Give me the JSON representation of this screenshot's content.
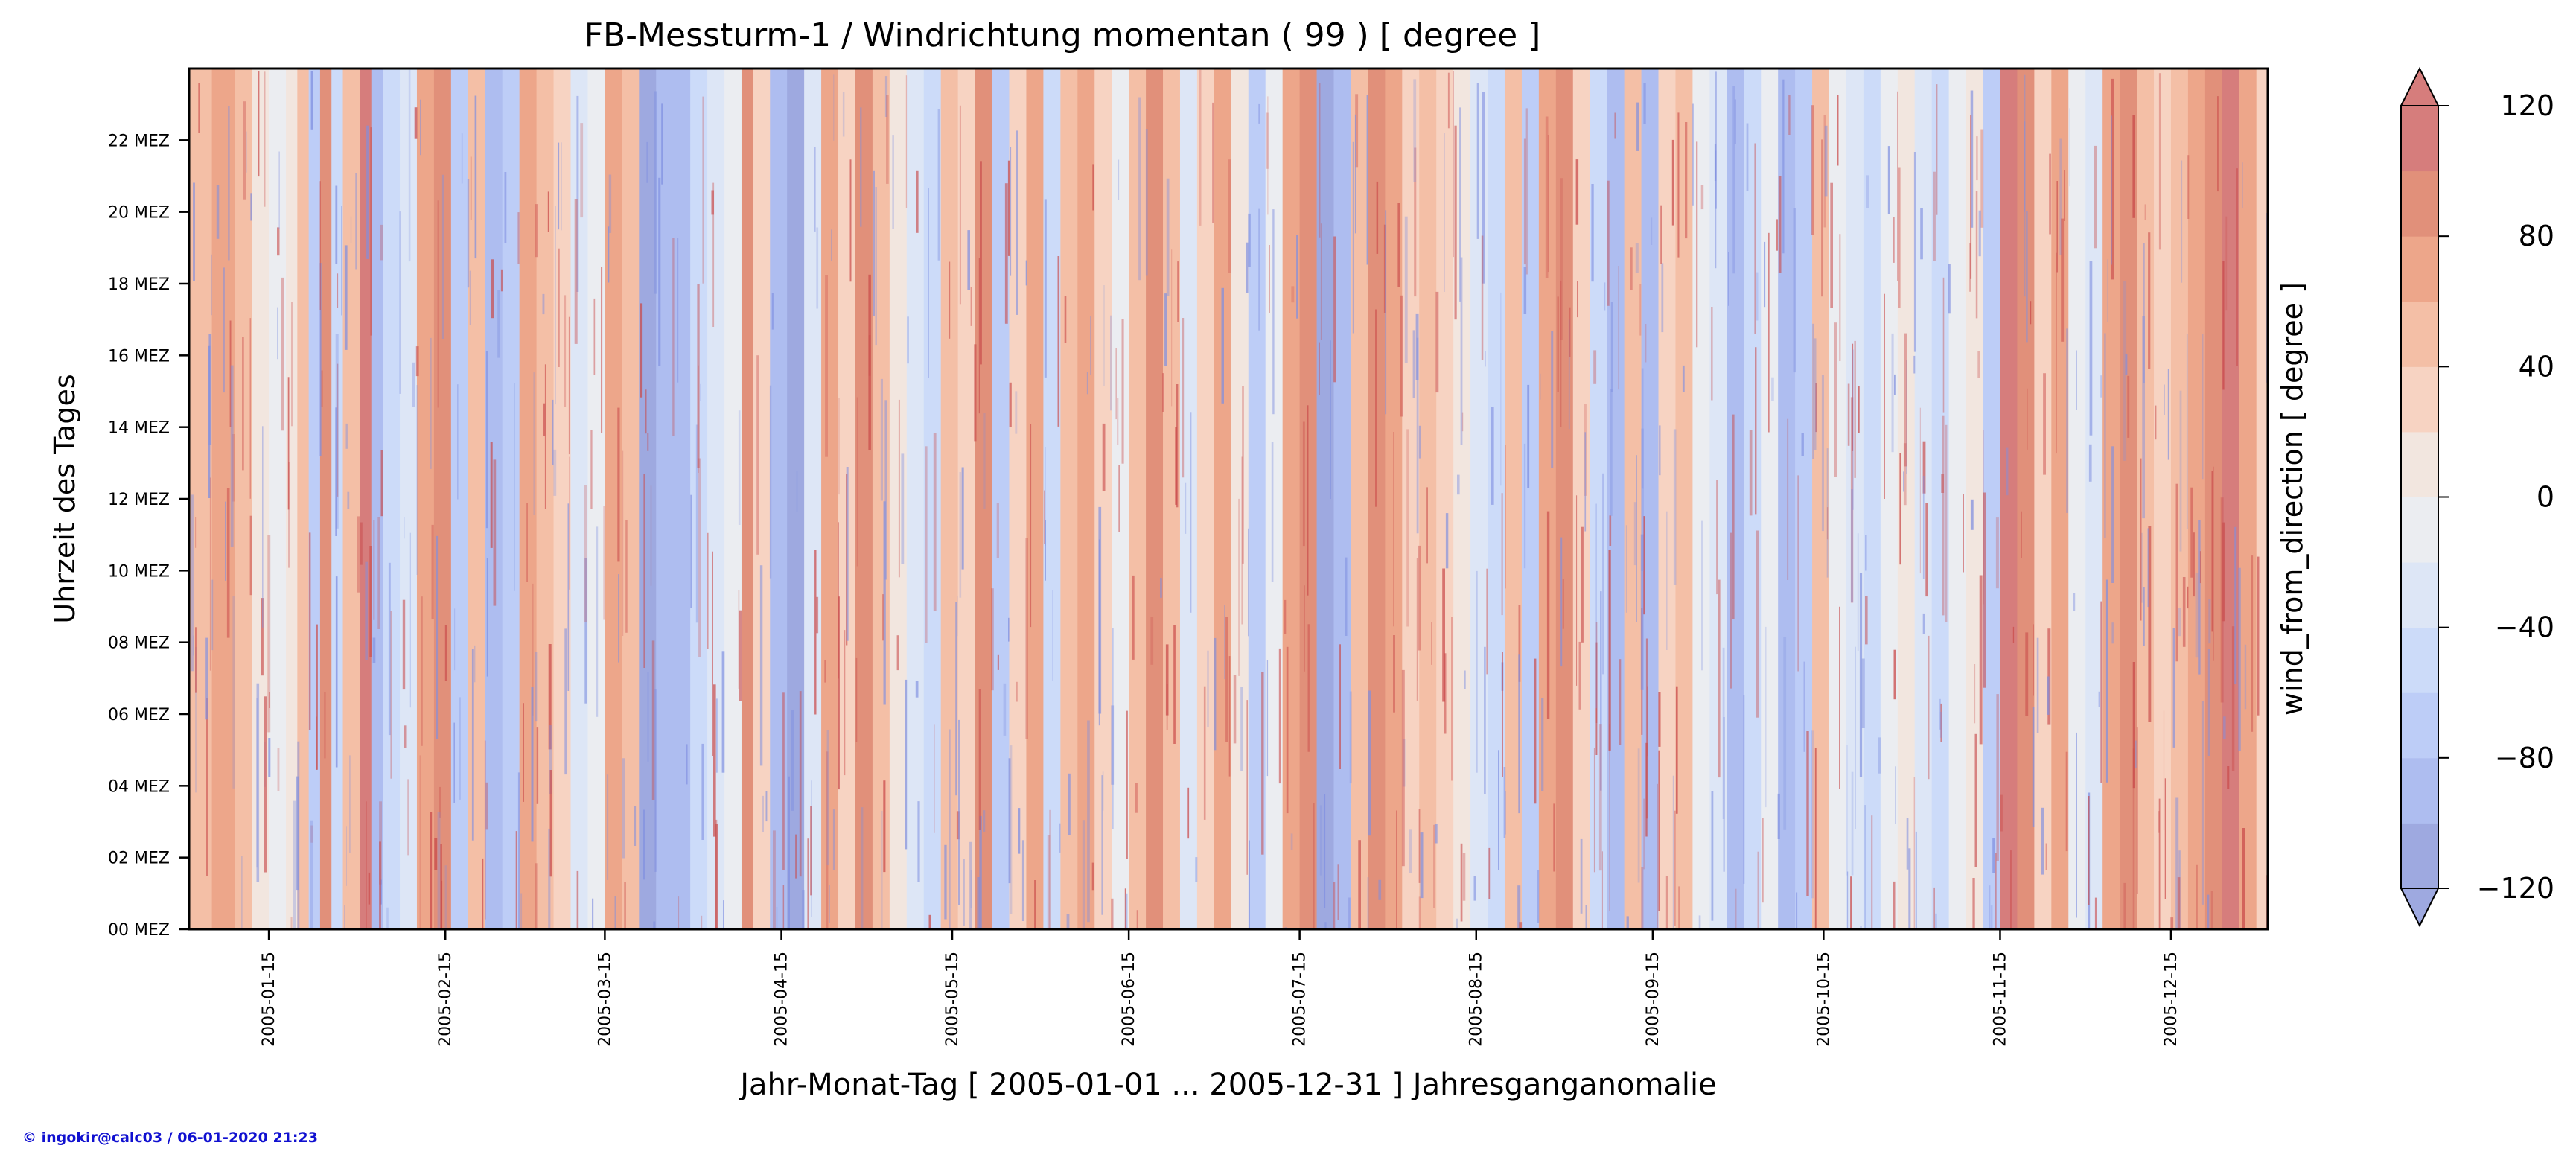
{
  "chart_data": {
    "type": "heatmap",
    "title": "FB-Messturm-1 / Windrichtung momentan ( 99 ) [ degree ]",
    "xlabel": "Jahr-Monat-Tag [ 2005-01-01 ... 2005-12-31 ] Jahresganganomalie",
    "ylabel": "Uhrzeit des Tages",
    "colorbar_label": "wind_from_direction [ degree ]",
    "x_range": [
      "2005-01-01",
      "2005-12-31"
    ],
    "y_range_hours": [
      0,
      24
    ],
    "x_ticks": [
      {
        "date": "2005-01-15",
        "day": 14
      },
      {
        "date": "2005-02-15",
        "day": 45
      },
      {
        "date": "2005-03-15",
        "day": 73
      },
      {
        "date": "2005-04-15",
        "day": 104
      },
      {
        "date": "2005-05-15",
        "day": 134
      },
      {
        "date": "2005-06-15",
        "day": 165
      },
      {
        "date": "2005-07-15",
        "day": 195
      },
      {
        "date": "2005-08-15",
        "day": 226
      },
      {
        "date": "2005-09-15",
        "day": 257
      },
      {
        "date": "2005-10-15",
        "day": 287
      },
      {
        "date": "2005-11-15",
        "day": 318
      },
      {
        "date": "2005-12-15",
        "day": 348
      }
    ],
    "y_ticks": [
      {
        "label": "00 MEZ",
        "hour": 0
      },
      {
        "label": "02 MEZ",
        "hour": 2
      },
      {
        "label": "04 MEZ",
        "hour": 4
      },
      {
        "label": "06 MEZ",
        "hour": 6
      },
      {
        "label": "08 MEZ",
        "hour": 8
      },
      {
        "label": "10 MEZ",
        "hour": 10
      },
      {
        "label": "12 MEZ",
        "hour": 12
      },
      {
        "label": "14 MEZ",
        "hour": 14
      },
      {
        "label": "16 MEZ",
        "hour": 16
      },
      {
        "label": "18 MEZ",
        "hour": 18
      },
      {
        "label": "20 MEZ",
        "hour": 20
      },
      {
        "label": "22 MEZ",
        "hour": 22
      }
    ],
    "colorbar": {
      "range": [
        -120,
        120
      ],
      "levels": [
        -120,
        -100,
        -80,
        -60,
        -40,
        -20,
        0,
        20,
        40,
        60,
        80,
        100,
        120
      ],
      "tick_values": [
        -120,
        -80,
        -40,
        0,
        40,
        80,
        120
      ],
      "tick_labels": [
        "−120",
        "−80",
        "−40",
        "0",
        "40",
        "80",
        "120"
      ],
      "colors": [
        "#9ea9e0",
        "#aebdf0",
        "#bdcdf7",
        "#ccdbf9",
        "#dde6f6",
        "#ebedf1",
        "#f2e6df",
        "#f7d3c2",
        "#f4bfa6",
        "#eda68a",
        "#e1907a",
        "#d67d7c"
      ],
      "extend": "both"
    },
    "daily_anomaly_estimate": [
      {
        "day": 0,
        "value": 40
      },
      {
        "day": 4,
        "value": 60
      },
      {
        "day": 8,
        "value": 40
      },
      {
        "day": 11,
        "value": 10
      },
      {
        "day": 14,
        "value": -20
      },
      {
        "day": 17,
        "value": 5
      },
      {
        "day": 19,
        "value": 40
      },
      {
        "day": 21,
        "value": -80
      },
      {
        "day": 23,
        "value": 80
      },
      {
        "day": 25,
        "value": -60
      },
      {
        "day": 27,
        "value": 40
      },
      {
        "day": 30,
        "value": 100
      },
      {
        "day": 32,
        "value": -90
      },
      {
        "day": 34,
        "value": -60
      },
      {
        "day": 37,
        "value": -30
      },
      {
        "day": 40,
        "value": 60
      },
      {
        "day": 43,
        "value": 80
      },
      {
        "day": 46,
        "value": -80
      },
      {
        "day": 49,
        "value": 50
      },
      {
        "day": 52,
        "value": -100
      },
      {
        "day": 55,
        "value": -70
      },
      {
        "day": 58,
        "value": 70
      },
      {
        "day": 61,
        "value": 40
      },
      {
        "day": 64,
        "value": 20
      },
      {
        "day": 67,
        "value": -40
      },
      {
        "day": 70,
        "value": -20
      },
      {
        "day": 73,
        "value": 60
      },
      {
        "day": 76,
        "value": 40
      },
      {
        "day": 79,
        "value": -110
      },
      {
        "day": 82,
        "value": -90
      },
      {
        "day": 85,
        "value": -100
      },
      {
        "day": 88,
        "value": -60
      },
      {
        "day": 91,
        "value": -30
      },
      {
        "day": 94,
        "value": -20
      },
      {
        "day": 97,
        "value": 90
      },
      {
        "day": 99,
        "value": 30
      },
      {
        "day": 102,
        "value": -90
      },
      {
        "day": 105,
        "value": -110
      },
      {
        "day": 108,
        "value": -40
      },
      {
        "day": 111,
        "value": 60
      },
      {
        "day": 114,
        "value": 30
      },
      {
        "day": 117,
        "value": 80
      },
      {
        "day": 120,
        "value": 40
      },
      {
        "day": 123,
        "value": 10
      },
      {
        "day": 126,
        "value": -30
      },
      {
        "day": 129,
        "value": -60
      },
      {
        "day": 132,
        "value": 40
      },
      {
        "day": 135,
        "value": 20
      },
      {
        "day": 138,
        "value": 80
      },
      {
        "day": 141,
        "value": -70
      },
      {
        "day": 144,
        "value": 30
      },
      {
        "day": 147,
        "value": 60
      },
      {
        "day": 150,
        "value": -50
      },
      {
        "day": 153,
        "value": 40
      },
      {
        "day": 156,
        "value": 70
      },
      {
        "day": 159,
        "value": 30
      },
      {
        "day": 162,
        "value": -20
      },
      {
        "day": 165,
        "value": 50
      },
      {
        "day": 168,
        "value": 90
      },
      {
        "day": 171,
        "value": 40
      },
      {
        "day": 174,
        "value": -40
      },
      {
        "day": 177,
        "value": 30
      },
      {
        "day": 180,
        "value": 70
      },
      {
        "day": 183,
        "value": 10
      },
      {
        "day": 186,
        "value": -80
      },
      {
        "day": 189,
        "value": -20
      },
      {
        "day": 192,
        "value": 60
      },
      {
        "day": 195,
        "value": 80
      },
      {
        "day": 198,
        "value": -110
      },
      {
        "day": 201,
        "value": -90
      },
      {
        "day": 204,
        "value": 40
      },
      {
        "day": 207,
        "value": 90
      },
      {
        "day": 210,
        "value": 60
      },
      {
        "day": 213,
        "value": 30
      },
      {
        "day": 216,
        "value": 40
      },
      {
        "day": 219,
        "value": 20
      },
      {
        "day": 222,
        "value": 10
      },
      {
        "day": 225,
        "value": -30
      },
      {
        "day": 228,
        "value": -60
      },
      {
        "day": 231,
        "value": 40
      },
      {
        "day": 234,
        "value": -70
      },
      {
        "day": 237,
        "value": 60
      },
      {
        "day": 240,
        "value": 80
      },
      {
        "day": 243,
        "value": 30
      },
      {
        "day": 246,
        "value": -60
      },
      {
        "day": 249,
        "value": -90
      },
      {
        "day": 252,
        "value": 50
      },
      {
        "day": 255,
        "value": -100
      },
      {
        "day": 258,
        "value": 20
      },
      {
        "day": 261,
        "value": 40
      },
      {
        "day": 264,
        "value": -20
      },
      {
        "day": 267,
        "value": -40
      },
      {
        "day": 270,
        "value": -90
      },
      {
        "day": 273,
        "value": -60
      },
      {
        "day": 276,
        "value": -10
      },
      {
        "day": 279,
        "value": -100
      },
      {
        "day": 282,
        "value": -80
      },
      {
        "day": 285,
        "value": 40
      },
      {
        "day": 288,
        "value": -20
      },
      {
        "day": 291,
        "value": -40
      },
      {
        "day": 294,
        "value": -60
      },
      {
        "day": 297,
        "value": -10
      },
      {
        "day": 300,
        "value": 10
      },
      {
        "day": 303,
        "value": -30
      },
      {
        "day": 306,
        "value": -50
      },
      {
        "day": 309,
        "value": -20
      },
      {
        "day": 312,
        "value": 10
      },
      {
        "day": 315,
        "value": -70
      },
      {
        "day": 318,
        "value": 100
      },
      {
        "day": 321,
        "value": 80
      },
      {
        "day": 324,
        "value": 30
      },
      {
        "day": 327,
        "value": 60
      },
      {
        "day": 330,
        "value": -20
      },
      {
        "day": 333,
        "value": -40
      },
      {
        "day": 336,
        "value": 70
      },
      {
        "day": 339,
        "value": 90
      },
      {
        "day": 342,
        "value": 50
      },
      {
        "day": 345,
        "value": 30
      },
      {
        "day": 348,
        "value": 40
      },
      {
        "day": 351,
        "value": 60
      },
      {
        "day": 354,
        "value": 80
      },
      {
        "day": 357,
        "value": 100
      },
      {
        "day": 360,
        "value": 70
      },
      {
        "day": 363,
        "value": 20
      }
    ]
  },
  "credit": "© ingokir@calc03 / 06-01-2020 21:23"
}
